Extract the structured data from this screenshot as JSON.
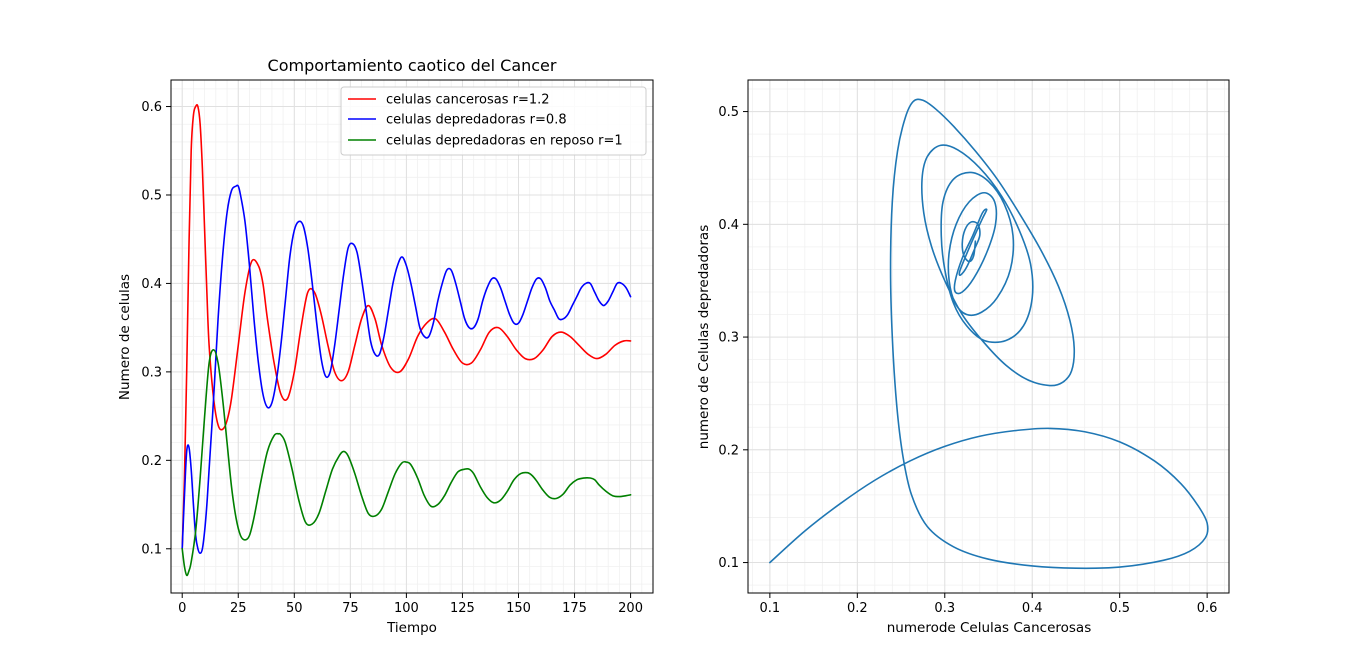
{
  "chart_data": [
    {
      "type": "line",
      "title": "Comportamiento caotico del Cancer",
      "xlabel": "Tiempo",
      "ylabel": "Numero de celulas",
      "xlim": [
        -5,
        210
      ],
      "ylim": [
        0.05,
        0.63
      ],
      "xticks": [
        "0",
        "25",
        "50",
        "75",
        "100",
        "125",
        "150",
        "175",
        "200"
      ],
      "yticks": [
        "0.1",
        "0.2",
        "0.3",
        "0.4",
        "0.5",
        "0.6"
      ],
      "grid": true,
      "legend_position": "top-right",
      "series": [
        {
          "name": "celulas cancerosas r=1.2",
          "color": "#ff0000",
          "x": [
            0,
            1,
            2,
            3,
            4,
            5,
            6,
            7,
            8,
            9,
            10,
            11,
            12,
            14,
            16,
            18,
            20,
            22,
            25,
            28,
            31,
            34,
            36,
            38,
            41,
            44,
            47,
            50,
            53,
            56,
            59,
            62,
            65,
            68,
            71,
            74,
            77,
            80,
            83,
            86,
            89,
            93,
            97,
            101,
            105,
            109,
            113,
            117,
            121,
            125,
            129,
            133,
            137,
            141,
            145,
            149,
            153,
            157,
            161,
            165,
            169,
            173,
            177,
            181,
            185,
            189,
            193,
            197,
            200
          ],
          "y": [
            0.1,
            0.18,
            0.3,
            0.44,
            0.55,
            0.59,
            0.6,
            0.6,
            0.58,
            0.53,
            0.46,
            0.39,
            0.33,
            0.27,
            0.24,
            0.235,
            0.245,
            0.27,
            0.33,
            0.39,
            0.425,
            0.42,
            0.4,
            0.36,
            0.31,
            0.275,
            0.27,
            0.3,
            0.35,
            0.39,
            0.39,
            0.365,
            0.33,
            0.3,
            0.29,
            0.3,
            0.33,
            0.36,
            0.375,
            0.36,
            0.33,
            0.305,
            0.3,
            0.315,
            0.34,
            0.355,
            0.36,
            0.345,
            0.325,
            0.31,
            0.31,
            0.325,
            0.345,
            0.35,
            0.34,
            0.325,
            0.315,
            0.315,
            0.325,
            0.34,
            0.345,
            0.34,
            0.33,
            0.32,
            0.315,
            0.32,
            0.33,
            0.335,
            0.335
          ]
        },
        {
          "name": "celulas depredadoras r=0.8",
          "color": "#0000ff",
          "x": [
            0,
            1,
            2,
            3,
            4,
            5,
            6,
            7,
            8,
            9,
            10,
            11,
            12,
            14,
            16,
            18,
            20,
            22,
            24,
            25,
            26,
            28,
            30,
            32,
            34,
            36,
            38,
            40,
            42,
            44,
            46,
            48,
            50,
            52,
            54,
            56,
            58,
            60,
            62,
            64,
            66,
            68,
            70,
            72,
            74,
            76,
            78,
            80,
            82,
            84,
            86,
            88,
            90,
            92,
            94,
            96,
            98,
            100,
            102,
            104,
            106,
            108,
            110,
            112,
            114,
            116,
            118,
            120,
            122,
            124,
            126,
            128,
            130,
            132,
            134,
            136,
            138,
            140,
            142,
            144,
            146,
            148,
            150,
            152,
            154,
            156,
            158,
            160,
            162,
            164,
            166,
            168,
            170,
            172,
            174,
            176,
            178,
            180,
            182,
            184,
            186,
            188,
            190,
            192,
            194,
            196,
            198,
            200
          ],
          "y": [
            0.1,
            0.16,
            0.21,
            0.215,
            0.19,
            0.15,
            0.115,
            0.1,
            0.095,
            0.1,
            0.12,
            0.15,
            0.19,
            0.27,
            0.36,
            0.43,
            0.48,
            0.505,
            0.51,
            0.51,
            0.5,
            0.47,
            0.42,
            0.36,
            0.31,
            0.275,
            0.26,
            0.265,
            0.29,
            0.33,
            0.38,
            0.43,
            0.46,
            0.47,
            0.465,
            0.44,
            0.4,
            0.355,
            0.315,
            0.295,
            0.3,
            0.33,
            0.37,
            0.41,
            0.44,
            0.445,
            0.435,
            0.405,
            0.37,
            0.335,
            0.32,
            0.32,
            0.34,
            0.37,
            0.4,
            0.42,
            0.43,
            0.42,
            0.4,
            0.375,
            0.35,
            0.34,
            0.34,
            0.355,
            0.38,
            0.4,
            0.415,
            0.415,
            0.4,
            0.38,
            0.36,
            0.35,
            0.35,
            0.36,
            0.38,
            0.395,
            0.405,
            0.405,
            0.395,
            0.38,
            0.365,
            0.355,
            0.355,
            0.365,
            0.38,
            0.395,
            0.405,
            0.405,
            0.395,
            0.38,
            0.37,
            0.36,
            0.36,
            0.365,
            0.375,
            0.385,
            0.395,
            0.4,
            0.4,
            0.39,
            0.38,
            0.375,
            0.38,
            0.39,
            0.4,
            0.4,
            0.395,
            0.385
          ]
        },
        {
          "name": "celulas depredadoras en reposo r=1",
          "color": "#008000",
          "x": [
            0,
            1,
            2,
            3,
            4,
            6,
            8,
            10,
            12,
            14,
            16,
            18,
            20,
            22,
            24,
            26,
            28,
            30,
            32,
            35,
            38,
            41,
            43,
            44,
            46,
            49,
            52,
            55,
            58,
            61,
            64,
            67,
            70,
            72,
            74,
            77,
            80,
            83,
            86,
            89,
            92,
            95,
            98,
            100,
            102,
            105,
            108,
            111,
            114,
            117,
            120,
            123,
            126,
            128,
            130,
            133,
            136,
            139,
            142,
            145,
            148,
            151,
            154,
            156,
            158,
            161,
            164,
            167,
            170,
            173,
            176,
            179,
            182,
            184,
            186,
            189,
            192,
            195,
            198,
            200
          ],
          "y": [
            0.1,
            0.08,
            0.07,
            0.075,
            0.085,
            0.12,
            0.18,
            0.25,
            0.31,
            0.325,
            0.31,
            0.27,
            0.22,
            0.17,
            0.135,
            0.115,
            0.11,
            0.115,
            0.135,
            0.175,
            0.21,
            0.228,
            0.23,
            0.229,
            0.22,
            0.19,
            0.155,
            0.13,
            0.128,
            0.14,
            0.165,
            0.19,
            0.205,
            0.21,
            0.205,
            0.185,
            0.16,
            0.14,
            0.137,
            0.145,
            0.165,
            0.185,
            0.197,
            0.198,
            0.195,
            0.18,
            0.16,
            0.148,
            0.15,
            0.16,
            0.175,
            0.187,
            0.19,
            0.19,
            0.185,
            0.17,
            0.158,
            0.152,
            0.155,
            0.165,
            0.178,
            0.185,
            0.186,
            0.183,
            0.177,
            0.166,
            0.158,
            0.157,
            0.162,
            0.172,
            0.178,
            0.18,
            0.18,
            0.178,
            0.172,
            0.165,
            0.16,
            0.159,
            0.16,
            0.161
          ]
        }
      ]
    },
    {
      "type": "line",
      "title": "",
      "xlabel": "numerode Celulas Cancerosas",
      "ylabel": "numero de Celulas depredadoras",
      "xlim": [
        0.075,
        0.625
      ],
      "ylim": [
        0.073,
        0.528
      ],
      "xticks": [
        "0.1",
        "0.2",
        "0.3",
        "0.4",
        "0.5",
        "0.6"
      ],
      "yticks": [
        "0.1",
        "0.2",
        "0.3",
        "0.4",
        "0.5"
      ],
      "grid": true,
      "series": [
        {
          "color": "#1f77b4",
          "x": [
            0.1,
            0.14,
            0.18,
            0.22,
            0.26,
            0.3,
            0.34,
            0.38,
            0.42,
            0.46,
            0.5,
            0.54,
            0.57,
            0.59,
            0.6,
            0.598,
            0.58,
            0.55,
            0.5,
            0.45,
            0.4,
            0.35,
            0.31,
            0.28,
            0.262,
            0.252,
            0.245,
            0.24,
            0.238,
            0.24,
            0.246,
            0.255,
            0.264,
            0.275,
            0.29,
            0.31,
            0.335,
            0.36,
            0.385,
            0.41,
            0.43,
            0.443,
            0.448,
            0.445,
            0.435,
            0.42,
            0.395,
            0.37,
            0.345,
            0.32,
            0.3,
            0.285,
            0.276,
            0.274,
            0.28,
            0.295,
            0.315,
            0.34,
            0.365,
            0.385,
            0.398,
            0.4,
            0.39,
            0.37,
            0.345,
            0.325,
            0.31,
            0.3,
            0.296,
            0.298,
            0.31,
            0.33,
            0.35,
            0.368,
            0.378,
            0.375,
            0.36,
            0.342,
            0.325,
            0.312,
            0.305,
            0.305,
            0.313,
            0.328,
            0.345,
            0.357,
            0.358,
            0.348,
            0.333,
            0.32,
            0.312,
            0.312,
            0.32,
            0.332,
            0.343,
            0.348,
            0.343,
            0.333,
            0.323,
            0.317,
            0.318,
            0.325,
            0.334,
            0.34,
            0.338,
            0.33,
            0.323,
            0.32,
            0.322,
            0.328,
            0.333,
            0.335
          ],
          "y": [
            0.1,
            0.128,
            0.152,
            0.173,
            0.19,
            0.203,
            0.212,
            0.217,
            0.219,
            0.216,
            0.207,
            0.19,
            0.17,
            0.15,
            0.135,
            0.122,
            0.11,
            0.102,
            0.096,
            0.095,
            0.097,
            0.103,
            0.114,
            0.132,
            0.16,
            0.195,
            0.24,
            0.3,
            0.36,
            0.42,
            0.465,
            0.495,
            0.509,
            0.51,
            0.502,
            0.487,
            0.465,
            0.44,
            0.41,
            0.377,
            0.345,
            0.315,
            0.29,
            0.27,
            0.26,
            0.257,
            0.262,
            0.275,
            0.295,
            0.32,
            0.35,
            0.38,
            0.41,
            0.44,
            0.46,
            0.47,
            0.466,
            0.45,
            0.425,
            0.395,
            0.365,
            0.335,
            0.31,
            0.297,
            0.297,
            0.31,
            0.33,
            0.36,
            0.39,
            0.42,
            0.44,
            0.446,
            0.438,
            0.418,
            0.39,
            0.36,
            0.335,
            0.322,
            0.32,
            0.33,
            0.35,
            0.375,
            0.4,
            0.42,
            0.428,
            0.42,
            0.4,
            0.375,
            0.352,
            0.34,
            0.34,
            0.35,
            0.37,
            0.39,
            0.41,
            0.413,
            0.405,
            0.388,
            0.37,
            0.358,
            0.355,
            0.362,
            0.378,
            0.39,
            0.4,
            0.402,
            0.395,
            0.383,
            0.372,
            0.367,
            0.372,
            0.385
          ]
        }
      ]
    }
  ]
}
